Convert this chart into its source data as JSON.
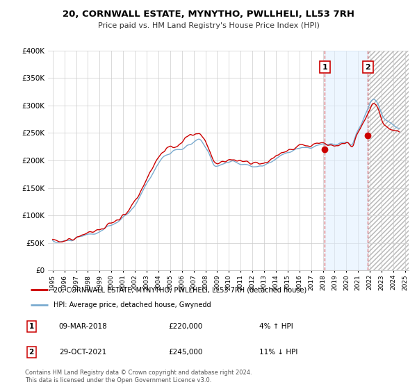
{
  "title": "20, CORNWALL ESTATE, MYNYTHO, PWLLHELI, LL53 7RH",
  "subtitle": "Price paid vs. HM Land Registry's House Price Index (HPI)",
  "legend_line1": "20, CORNWALL ESTATE, MYNYTHO, PWLLHELI, LL53 7RH (detached house)",
  "legend_line2": "HPI: Average price, detached house, Gwynedd",
  "transaction1_date": "09-MAR-2018",
  "transaction1_price": "£220,000",
  "transaction1_pct": "4% ↑ HPI",
  "transaction1_year": 2018.17,
  "transaction1_value": 220000,
  "transaction2_date": "29-OCT-2021",
  "transaction2_price": "£245,000",
  "transaction2_pct": "11% ↓ HPI",
  "transaction2_year": 2021.83,
  "transaction2_value": 245000,
  "ylim": [
    0,
    400000
  ],
  "yticks": [
    0,
    50000,
    100000,
    150000,
    200000,
    250000,
    300000,
    350000,
    400000
  ],
  "ytick_labels": [
    "£0",
    "£50K",
    "£100K",
    "£150K",
    "£200K",
    "£250K",
    "£300K",
    "£350K",
    "£400K"
  ],
  "footer_line1": "Contains HM Land Registry data © Crown copyright and database right 2024.",
  "footer_line2": "This data is licensed under the Open Government Licence v3.0.",
  "line_red": "#cc0000",
  "line_blue": "#7aabcf",
  "bg_color": "#ffffff",
  "grid_color": "#cccccc",
  "shade_color": "#ddeeff",
  "shade_alpha": 0.5,
  "transaction_line_color": "#cc0000",
  "transaction_line_alpha": 0.6,
  "xtick_years": [
    1995,
    1996,
    1997,
    1998,
    1999,
    2000,
    2001,
    2002,
    2003,
    2004,
    2005,
    2006,
    2007,
    2008,
    2009,
    2010,
    2011,
    2012,
    2013,
    2014,
    2015,
    2016,
    2017,
    2018,
    2019,
    2020,
    2021,
    2022,
    2023,
    2024,
    2025
  ]
}
